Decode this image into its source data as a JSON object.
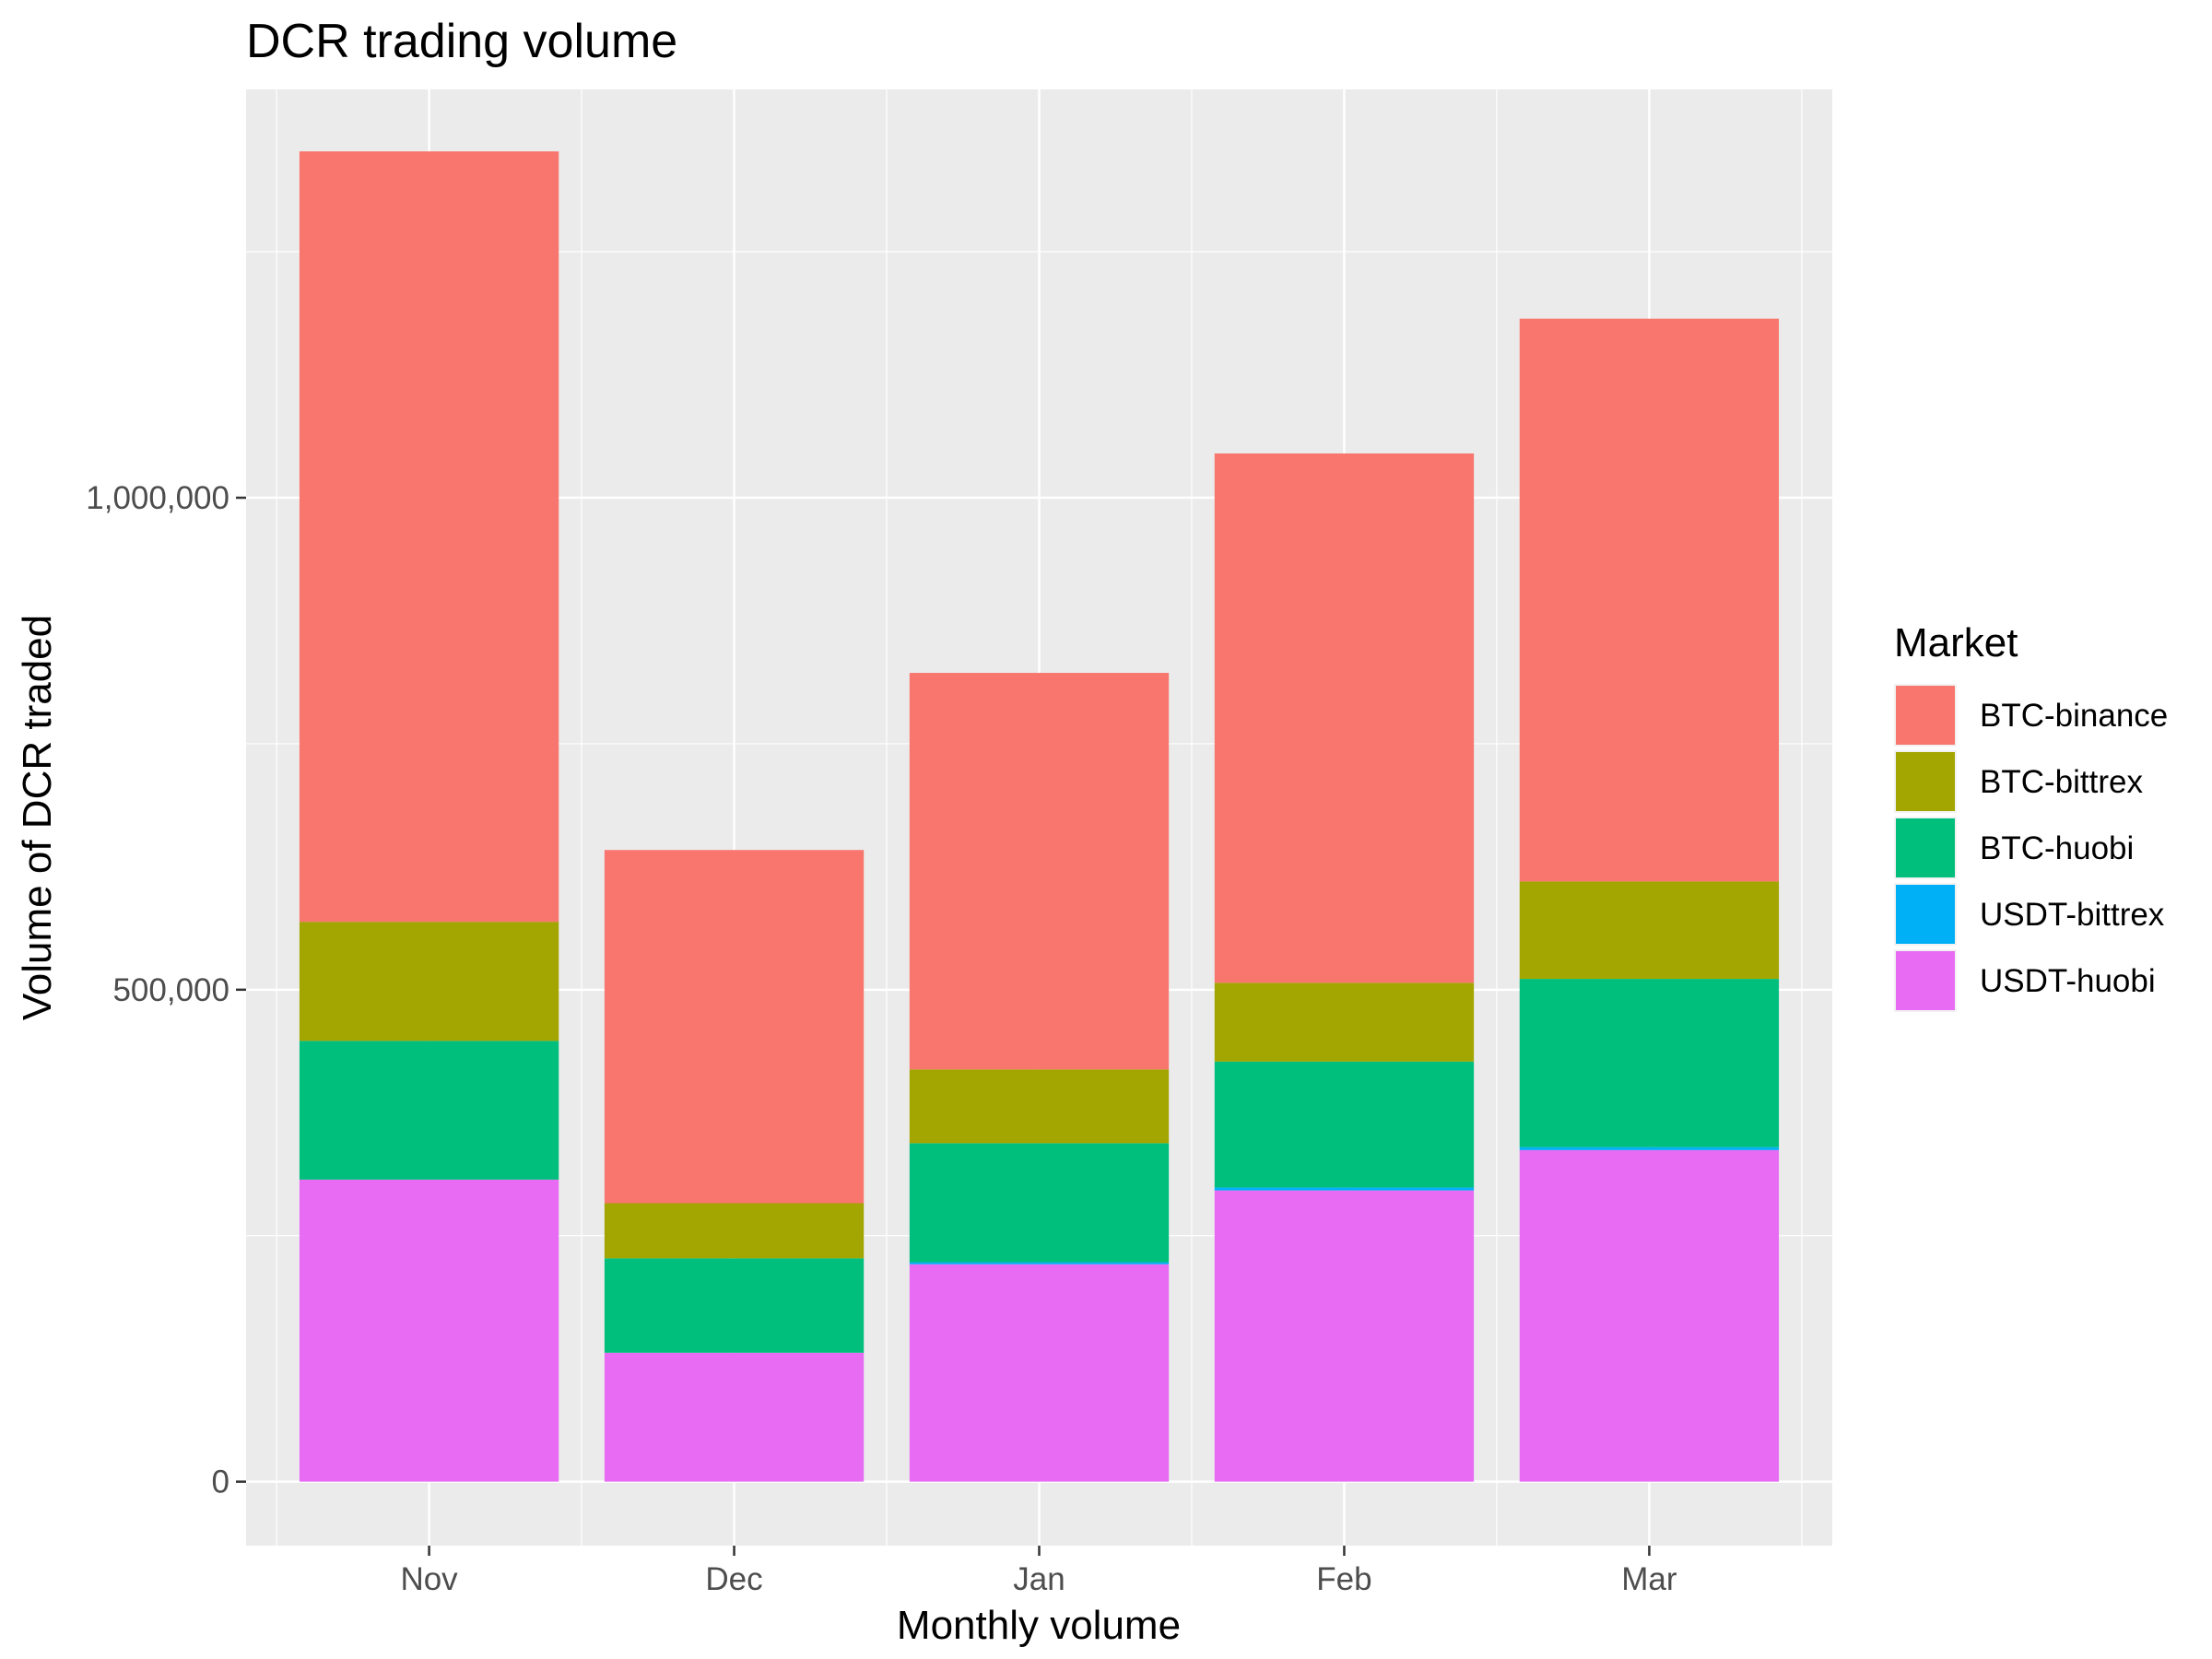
{
  "chart_data": {
    "type": "bar",
    "stacked": true,
    "title": "DCR trading volume",
    "xlabel": "Monthly volume",
    "ylabel": "Volume of DCR traded",
    "categories": [
      "Nov",
      "Dec",
      "Jan",
      "Feb",
      "Mar"
    ],
    "ylim": [
      -65000,
      1415000
    ],
    "y_ticks": [
      0,
      500000,
      1000000
    ],
    "y_tick_labels": [
      "0",
      "500,000",
      "1,000,000"
    ],
    "grid": true,
    "legend_title": "Market",
    "legend_position": "right",
    "series": [
      {
        "name": "USDT-huobi",
        "color": "#E76BF3",
        "values": [
          307000,
          131000,
          221000,
          296000,
          337000
        ]
      },
      {
        "name": "USDT-bittrex",
        "color": "#00B0F6",
        "values": [
          0,
          0,
          2000,
          3000,
          3000
        ]
      },
      {
        "name": "BTC-huobi",
        "color": "#00BF7D",
        "values": [
          141000,
          96000,
          121000,
          128000,
          171000
        ]
      },
      {
        "name": "BTC-bittrex",
        "color": "#A3A500",
        "values": [
          121000,
          56000,
          75000,
          80000,
          99000
        ]
      },
      {
        "name": "BTC-binance",
        "color": "#F8766D",
        "values": [
          783000,
          359000,
          403000,
          538000,
          572000
        ]
      }
    ],
    "legend_order": [
      "BTC-binance",
      "BTC-bittrex",
      "BTC-huobi",
      "USDT-bittrex",
      "USDT-huobi"
    ]
  }
}
